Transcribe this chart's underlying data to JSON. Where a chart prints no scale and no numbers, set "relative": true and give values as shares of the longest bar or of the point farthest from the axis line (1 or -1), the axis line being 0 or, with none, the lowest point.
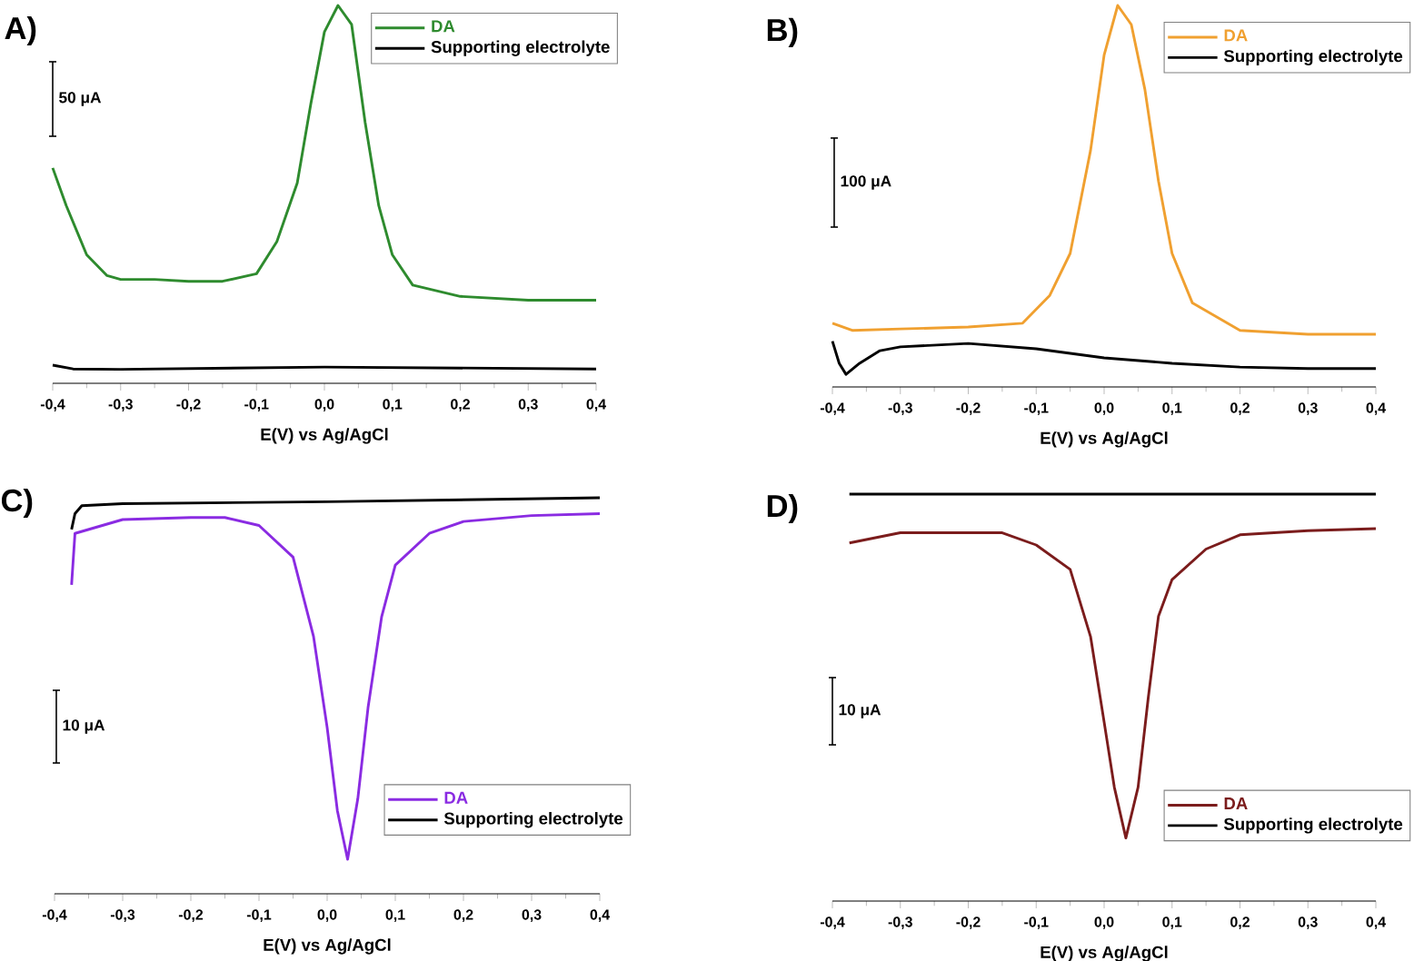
{
  "chart_data": [
    {
      "type": "line",
      "title": "A)",
      "xlabel": "E(V) vs Ag/AgCl",
      "relative": true,
      "xlim": [
        -0.4,
        0.4
      ],
      "xticks": [
        {
          "value": -0.4,
          "label": "-0,4"
        },
        {
          "value": -0.3,
          "label": "-0,3"
        },
        {
          "value": -0.2,
          "label": "-0,2"
        },
        {
          "value": -0.1,
          "label": "-0,1"
        },
        {
          "value": 0.0,
          "label": "0,0"
        },
        {
          "value": 0.1,
          "label": "0,1"
        },
        {
          "value": 0.2,
          "label": "0,2"
        },
        {
          "value": 0.3,
          "label": "0,3"
        },
        {
          "value": 0.4,
          "label": "0,4"
        }
      ],
      "legend": "top right",
      "line_style": "solid",
      "annotations": [
        "50 μA"
      ],
      "series": [
        {
          "name": "DA",
          "color": "#2e8b2e",
          "x": [
            -0.4,
            -0.38,
            -0.35,
            -0.32,
            -0.3,
            -0.25,
            -0.2,
            -0.15,
            -0.1,
            -0.07,
            -0.04,
            -0.02,
            0.0,
            0.02,
            0.04,
            0.06,
            0.08,
            0.1,
            0.13,
            0.2,
            0.3,
            0.4
          ],
          "values": [
            0.57,
            0.47,
            0.34,
            0.285,
            0.275,
            0.275,
            0.27,
            0.27,
            0.29,
            0.375,
            0.53,
            0.74,
            0.93,
            1.0,
            0.95,
            0.69,
            0.47,
            0.34,
            0.26,
            0.23,
            0.22,
            0.22
          ]
        },
        {
          "name": "Supporting electrolyte",
          "color": "#000000",
          "x": [
            -0.4,
            -0.37,
            -0.3,
            0.0,
            0.4
          ],
          "values": [
            0.048,
            0.038,
            0.037,
            0.043,
            0.038
          ]
        }
      ]
    },
    {
      "type": "line",
      "title": "B)",
      "xlabel": "E(V) vs Ag/AgCl",
      "relative": true,
      "xlim": [
        -0.4,
        0.4
      ],
      "xticks": [
        {
          "value": -0.4,
          "label": "-0,4"
        },
        {
          "value": -0.3,
          "label": "-0,3"
        },
        {
          "value": -0.2,
          "label": "-0,2"
        },
        {
          "value": -0.1,
          "label": "-0,1"
        },
        {
          "value": 0.0,
          "label": "0,0"
        },
        {
          "value": 0.1,
          "label": "0,1"
        },
        {
          "value": 0.2,
          "label": "0,2"
        },
        {
          "value": 0.3,
          "label": "0,3"
        },
        {
          "value": 0.4,
          "label": "0,4"
        }
      ],
      "legend": "top right",
      "line_style": "solid",
      "annotations": [
        "100 μA"
      ],
      "series": [
        {
          "name": "DA",
          "color": "#f0a030",
          "x": [
            -0.4,
            -0.37,
            -0.3,
            -0.2,
            -0.12,
            -0.08,
            -0.05,
            -0.02,
            0.0,
            0.02,
            0.04,
            0.06,
            0.08,
            0.1,
            0.13,
            0.2,
            0.3,
            0.4
          ],
          "values": [
            0.167,
            0.148,
            0.152,
            0.157,
            0.167,
            0.24,
            0.35,
            0.62,
            0.87,
            1.0,
            0.95,
            0.78,
            0.54,
            0.35,
            0.22,
            0.148,
            0.138,
            0.138
          ]
        },
        {
          "name": "Supporting electrolyte",
          "color": "#000000",
          "x": [
            -0.4,
            -0.39,
            -0.38,
            -0.36,
            -0.33,
            -0.3,
            -0.2,
            -0.1,
            0.0,
            0.1,
            0.2,
            0.3,
            0.4
          ],
          "values": [
            0.12,
            0.062,
            0.033,
            0.062,
            0.095,
            0.105,
            0.114,
            0.1,
            0.076,
            0.062,
            0.052,
            0.048,
            0.048
          ]
        }
      ]
    },
    {
      "type": "line",
      "title": "C)",
      "xlabel": "E(V) vs Ag/AgCl",
      "relative": true,
      "xlim": [
        -0.4,
        0.4
      ],
      "xticks": [
        {
          "value": -0.4,
          "label": "-0,4"
        },
        {
          "value": -0.3,
          "label": "-0,3"
        },
        {
          "value": -0.2,
          "label": "-0,2"
        },
        {
          "value": -0.1,
          "label": "-0,1"
        },
        {
          "value": 0.0,
          "label": "0,0"
        },
        {
          "value": 0.1,
          "label": "0,1"
        },
        {
          "value": 0.2,
          "label": "0,2"
        },
        {
          "value": 0.3,
          "label": "0,3"
        },
        {
          "value": 0.4,
          "label": "0,4"
        }
      ],
      "legend": "bottom right",
      "line_style": "solid",
      "annotations": [
        "10 μA"
      ],
      "series": [
        {
          "name": "DA",
          "color": "#8a2be2",
          "x": [
            -0.375,
            -0.37,
            -0.3,
            -0.2,
            -0.15,
            -0.1,
            -0.05,
            -0.02,
            0.0,
            0.015,
            0.03,
            0.045,
            0.06,
            0.08,
            0.1,
            0.15,
            0.2,
            0.3,
            0.4
          ],
          "values": [
            0.78,
            0.91,
            0.945,
            0.95,
            0.95,
            0.93,
            0.85,
            0.65,
            0.42,
            0.21,
            0.087,
            0.24,
            0.47,
            0.7,
            0.83,
            0.91,
            0.94,
            0.955,
            0.96
          ]
        },
        {
          "name": "Supporting electrolyte",
          "color": "#000000",
          "x": [
            -0.375,
            -0.37,
            -0.36,
            -0.3,
            0.0,
            0.4
          ],
          "values": [
            0.92,
            0.96,
            0.98,
            0.985,
            0.99,
            1.0
          ]
        }
      ]
    },
    {
      "type": "line",
      "title": "D)",
      "xlabel": "E(V) vs Ag/AgCl",
      "relative": true,
      "xlim": [
        -0.4,
        0.4
      ],
      "xticks": [
        {
          "value": -0.4,
          "label": "-0,4"
        },
        {
          "value": -0.3,
          "label": "-0,3"
        },
        {
          "value": -0.2,
          "label": "-0,2"
        },
        {
          "value": -0.1,
          "label": "-0,1"
        },
        {
          "value": 0.0,
          "label": "0,0"
        },
        {
          "value": 0.1,
          "label": "0,1"
        },
        {
          "value": 0.2,
          "label": "0,2"
        },
        {
          "value": 0.3,
          "label": "0,3"
        },
        {
          "value": 0.4,
          "label": "0,4"
        }
      ],
      "legend": "bottom right",
      "line_style": "solid",
      "annotations": [
        "10 μA"
      ],
      "series": [
        {
          "name": "DA",
          "color": "#7b1c1c",
          "x": [
            -0.375,
            -0.3,
            -0.15,
            -0.1,
            -0.05,
            -0.02,
            0.0,
            0.015,
            0.032,
            0.05,
            0.065,
            0.08,
            0.1,
            0.15,
            0.2,
            0.3,
            0.4
          ],
          "values": [
            0.88,
            0.905,
            0.905,
            0.875,
            0.815,
            0.65,
            0.44,
            0.28,
            0.155,
            0.28,
            0.5,
            0.7,
            0.79,
            0.865,
            0.9,
            0.91,
            0.915
          ]
        },
        {
          "name": "Supporting electrolyte",
          "color": "#000000",
          "x": [
            -0.375,
            0.0,
            0.4
          ],
          "values": [
            1.0,
            1.0,
            1.0
          ]
        }
      ]
    }
  ]
}
